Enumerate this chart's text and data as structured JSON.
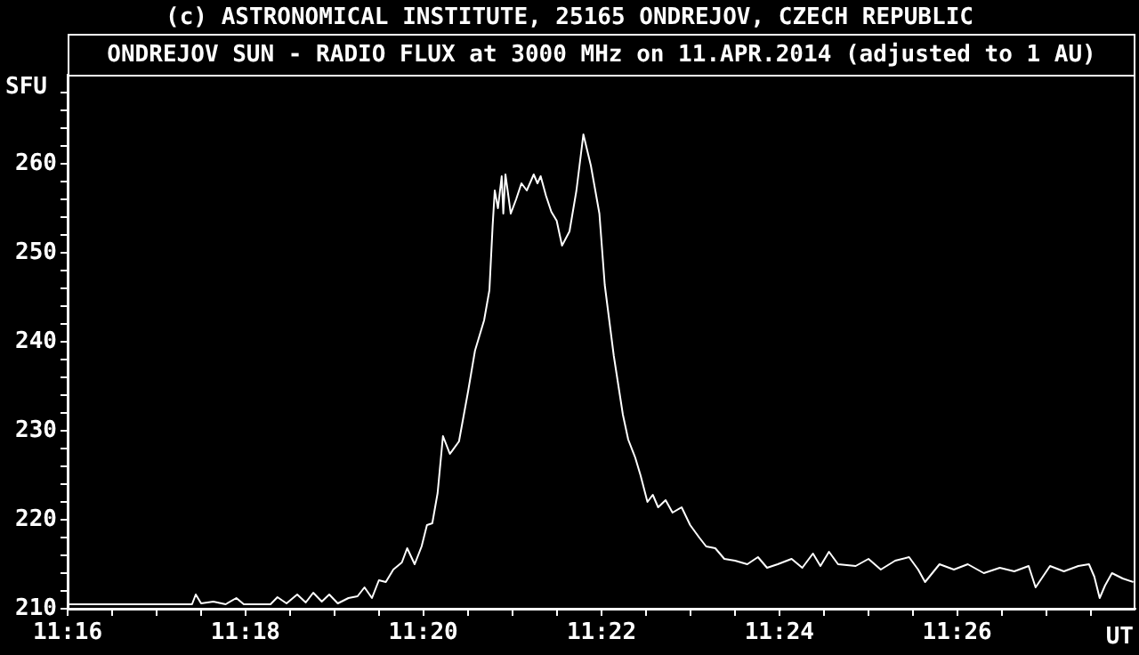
{
  "chart_data": {
    "type": "line",
    "title": "(c) ASTRONOMICAL INSTITUTE, 25165 ONDREJOV, CZECH REPUBLIC",
    "subtitle": "ONDREJOV SUN - RADIO FLUX at 3000 MHz on 11.APR.2014 (adjusted to 1 AU)",
    "ylabel": "SFU",
    "xlabel": "UT",
    "marker": "none",
    "xlim": [
      11.2667,
      11.4667
    ],
    "xticks": [
      {
        "value": 11.2667,
        "label": "11:16"
      },
      {
        "value": 11.275,
        "label": null
      },
      {
        "value": 11.2833,
        "label": null
      },
      {
        "value": 11.2917,
        "label": null
      },
      {
        "value": 11.3,
        "label": "11:18"
      },
      {
        "value": 11.3083,
        "label": null
      },
      {
        "value": 11.3167,
        "label": null
      },
      {
        "value": 11.325,
        "label": null
      },
      {
        "value": 11.3333,
        "label": "11:20"
      },
      {
        "value": 11.3417,
        "label": null
      },
      {
        "value": 11.35,
        "label": null
      },
      {
        "value": 11.3583,
        "label": null
      },
      {
        "value": 11.3667,
        "label": "11:22"
      },
      {
        "value": 11.375,
        "label": null
      },
      {
        "value": 11.3833,
        "label": null
      },
      {
        "value": 11.3917,
        "label": null
      },
      {
        "value": 11.4,
        "label": "11:24"
      },
      {
        "value": 11.4083,
        "label": null
      },
      {
        "value": 11.4167,
        "label": null
      },
      {
        "value": 11.425,
        "label": null
      },
      {
        "value": 11.4333,
        "label": "11:26"
      },
      {
        "value": 11.4417,
        "label": null
      },
      {
        "value": 11.45,
        "label": null
      },
      {
        "value": 11.4583,
        "label": null
      }
    ],
    "ylim": [
      210,
      270
    ],
    "yticks": [
      210,
      {
        "value": 212,
        "label": null
      },
      {
        "value": 214,
        "label": null
      },
      {
        "value": 216,
        "label": null
      },
      {
        "value": 218,
        "label": null
      },
      220,
      {
        "value": 222,
        "label": null
      },
      {
        "value": 224,
        "label": null
      },
      {
        "value": 226,
        "label": null
      },
      {
        "value": 228,
        "label": null
      },
      230,
      {
        "value": 232,
        "label": null
      },
      {
        "value": 234,
        "label": null
      },
      {
        "value": 236,
        "label": null
      },
      {
        "value": 238,
        "label": null
      },
      240,
      {
        "value": 242,
        "label": null
      },
      {
        "value": 244,
        "label": null
      },
      {
        "value": 246,
        "label": null
      },
      {
        "value": 248,
        "label": null
      },
      250,
      {
        "value": 252,
        "label": null
      },
      {
        "value": 254,
        "label": null
      },
      {
        "value": 256,
        "label": null
      },
      {
        "value": 258,
        "label": null
      },
      260,
      {
        "value": 262,
        "label": null
      },
      {
        "value": 264,
        "label": null
      },
      {
        "value": 266,
        "label": null
      },
      {
        "value": 268,
        "label": null
      }
    ],
    "x": [
      11.2667,
      11.29,
      11.2907,
      11.2917,
      11.294,
      11.2963,
      11.2983,
      11.2997,
      11.3047,
      11.306,
      11.3077,
      11.3097,
      11.3113,
      11.3127,
      11.3143,
      11.3157,
      11.3173,
      11.3193,
      11.321,
      11.3223,
      11.3237,
      11.325,
      11.3263,
      11.3277,
      11.3293,
      11.3303,
      11.3317,
      11.333,
      11.334,
      11.335,
      11.336,
      11.337,
      11.3383,
      11.34,
      11.3417,
      11.343,
      11.3447,
      11.3457,
      11.3463,
      11.3467,
      11.3473,
      11.348,
      11.3483,
      11.3487,
      11.3497,
      11.3507,
      11.3517,
      11.3527,
      11.354,
      11.3547,
      11.3553,
      11.3563,
      11.3573,
      11.3583,
      11.3593,
      11.36,
      11.3607,
      11.362,
      11.3633,
      11.3647,
      11.3663,
      11.3673,
      11.369,
      11.3707,
      11.3717,
      11.373,
      11.374,
      11.3753,
      11.3763,
      11.3773,
      11.3787,
      11.38,
      11.3817,
      11.3833,
      11.385,
      11.3863,
      11.388,
      11.3897,
      11.3917,
      11.394,
      11.396,
      11.3977,
      11.3997,
      11.4023,
      11.4043,
      11.4063,
      11.4077,
      11.4093,
      11.411,
      11.4143,
      11.4167,
      11.419,
      11.4217,
      11.4243,
      11.426,
      11.4273,
      11.43,
      11.4327,
      11.4353,
      11.4383,
      11.4413,
      11.444,
      11.4467,
      11.448,
      11.4507,
      11.4533,
      11.456,
      11.458,
      11.459,
      11.46,
      11.461,
      11.4623,
      11.4643,
      11.4663
    ],
    "series": [
      {
        "color": "#ffffff",
        "values": [
          210.5,
          210.5,
          211.6,
          210.6,
          210.8,
          210.5,
          211.2,
          210.5,
          210.5,
          211.3,
          210.6,
          211.6,
          210.7,
          211.8,
          210.8,
          211.6,
          210.6,
          211.2,
          211.4,
          212.4,
          211.2,
          213.2,
          213,
          214.4,
          215.2,
          216.8,
          215,
          217,
          219.4,
          219.6,
          223,
          229.4,
          227.4,
          228.8,
          234.4,
          239,
          242.4,
          245.8,
          253,
          257,
          255,
          258.6,
          254.4,
          258.8,
          254.4,
          256,
          257.8,
          257,
          258.8,
          257.8,
          258.6,
          256.4,
          254.6,
          253.6,
          250.8,
          251.6,
          252.4,
          257,
          263.3,
          259.8,
          254.4,
          246.4,
          238.4,
          231.8,
          229,
          227,
          225,
          222,
          222.8,
          221.4,
          222.2,
          220.8,
          221.4,
          219.4,
          218,
          217,
          216.8,
          215.6,
          215.4,
          215,
          215.8,
          214.6,
          215,
          215.6,
          214.6,
          216.2,
          214.8,
          216.4,
          215,
          214.8,
          215.6,
          214.4,
          215.4,
          215.8,
          214.4,
          213,
          215,
          214.4,
          215,
          214,
          214.6,
          214.2,
          214.8,
          212.4,
          214.8,
          214.2,
          214.8,
          215,
          213.6,
          211.2,
          212.6,
          214,
          213.4,
          213
        ]
      }
    ]
  }
}
